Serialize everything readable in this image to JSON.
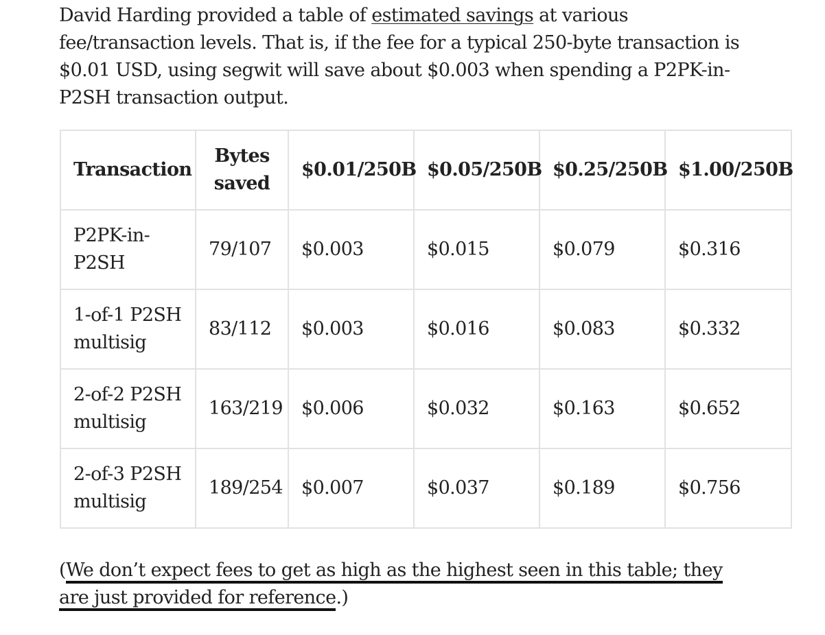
{
  "intro": {
    "before_link": "David Harding provided a table of ",
    "link_text": "estimated savings",
    "after_link": " at various fee/transaction levels. That is, if the fee for a typical 250-byte transaction is $0.01 USD, using segwit will save about $0.003 when spending a P2PK-in-P2SH transaction output."
  },
  "table": {
    "headers": [
      "Transaction",
      "Bytes saved",
      "$0.01/250B",
      "$0.05/250B",
      "$0.25/250B",
      "$1.00/250B"
    ],
    "rows": [
      [
        "P2PK-in-P2SH",
        "79/107",
        "$0.003",
        "$0.015",
        "$0.079",
        "$0.316"
      ],
      [
        "1-of-1 P2SH multisig",
        "83/112",
        "$0.003",
        "$0.016",
        "$0.083",
        "$0.332"
      ],
      [
        "2-of-2 P2SH multisig",
        "163/219",
        "$0.006",
        "$0.032",
        "$0.163",
        "$0.652"
      ],
      [
        "2-of-3 P2SH multisig",
        "189/254",
        "$0.007",
        "$0.037",
        "$0.189",
        "$0.756"
      ]
    ]
  },
  "note": {
    "open_paren": "(",
    "emphasized": "We don’t expect fees to get as high as the highest seen in this table; they are just provided for reference",
    "close": ".)"
  }
}
